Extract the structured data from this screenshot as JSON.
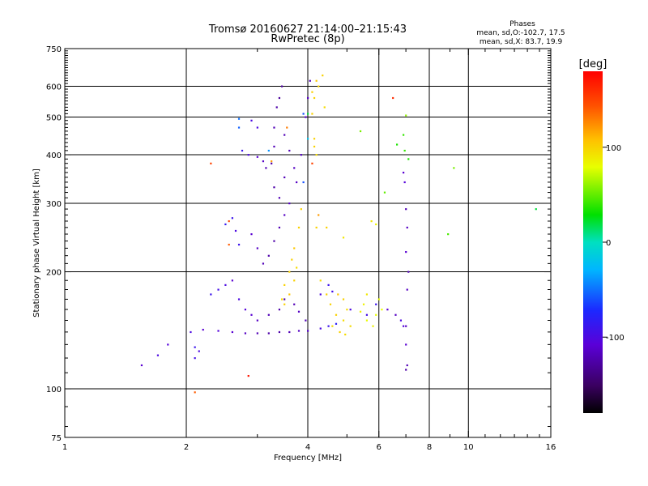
{
  "chart_data": {
    "type": "scatter",
    "title": "Tromsø 20160627 21:14:00–21:15:43",
    "subtitle": "RwPretec (8p)",
    "stats": {
      "heading": "Phases",
      "line1": "mean, sd,O:-102.7, 17.5",
      "line2": "mean, sd,X:  83.7, 19.9"
    },
    "xlabel": "Frequency [MHz]",
    "ylabel": "Stationary phase Virtual Height [km]",
    "x_scale": "log",
    "y_scale": "log",
    "xlim": [
      1,
      16
    ],
    "ylim": [
      75,
      750
    ],
    "xticks": [
      1,
      2,
      4,
      6,
      8,
      10,
      16
    ],
    "xtick_labels": [
      "1",
      "2",
      "4",
      "6",
      "8",
      "10",
      "16"
    ],
    "yticks": [
      75,
      100,
      200,
      300,
      400,
      500,
      600,
      750
    ],
    "ytick_labels": [
      "75",
      "100",
      "200",
      "300",
      "400",
      "500",
      "600",
      "750"
    ],
    "grid": true,
    "grid_x": [
      2,
      4,
      6,
      8,
      10
    ],
    "grid_y": [
      100,
      200,
      300,
      400,
      500,
      600
    ],
    "colorbar": {
      "label": "[deg]",
      "range": [
        -180,
        180
      ],
      "ticks": [
        100,
        0,
        -100
      ],
      "tick_labels": [
        "100",
        "0",
        "-100"
      ],
      "colormap": "rainbow-black-to-red"
    },
    "series": [
      {
        "values": [
          [
            2.05,
            140,
            -100
          ],
          [
            2.2,
            142,
            -110
          ],
          [
            2.4,
            141,
            -105
          ],
          [
            2.6,
            140,
            -110
          ],
          [
            2.8,
            139,
            -115
          ],
          [
            3.0,
            139,
            -120
          ],
          [
            3.2,
            139,
            -125
          ],
          [
            3.4,
            140,
            -125
          ],
          [
            3.6,
            140,
            -120
          ],
          [
            3.8,
            141,
            -115
          ],
          [
            4.0,
            141,
            -110
          ],
          [
            4.3,
            143,
            -100
          ],
          [
            4.5,
            145,
            -90
          ],
          [
            4.7,
            147,
            -80
          ],
          [
            2.1,
            128,
            -90
          ],
          [
            2.15,
            125,
            -100
          ],
          [
            2.1,
            120,
            -95
          ],
          [
            2.3,
            175,
            -90
          ],
          [
            2.4,
            180,
            -95
          ],
          [
            2.5,
            185,
            -100
          ],
          [
            2.6,
            190,
            -110
          ],
          [
            2.7,
            170,
            -100
          ],
          [
            2.8,
            160,
            -105
          ],
          [
            2.9,
            155,
            -110
          ],
          [
            3.0,
            150,
            -115
          ],
          [
            3.2,
            155,
            -120
          ],
          [
            3.4,
            160,
            -125
          ],
          [
            3.5,
            170,
            -125
          ],
          [
            3.7,
            165,
            -120
          ],
          [
            3.8,
            158,
            -115
          ],
          [
            3.95,
            150,
            -120
          ],
          [
            2.5,
            265,
            -85
          ],
          [
            2.6,
            275,
            -90
          ],
          [
            2.65,
            255,
            -100
          ],
          [
            2.7,
            235,
            -90
          ],
          [
            2.9,
            250,
            -110
          ],
          [
            3.0,
            230,
            -115
          ],
          [
            3.1,
            210,
            -120
          ],
          [
            3.2,
            220,
            -125
          ],
          [
            3.3,
            240,
            -125
          ],
          [
            3.4,
            260,
            -120
          ],
          [
            3.5,
            280,
            -115
          ],
          [
            3.6,
            300,
            -115
          ],
          [
            3.3,
            330,
            -125
          ],
          [
            3.4,
            310,
            -120
          ],
          [
            3.5,
            350,
            -120
          ],
          [
            2.75,
            410,
            -90
          ],
          [
            2.85,
            400,
            -100
          ],
          [
            3.0,
            395,
            -110
          ],
          [
            3.1,
            385,
            -115
          ],
          [
            3.15,
            370,
            -120
          ],
          [
            3.25,
            380,
            -125
          ],
          [
            3.3,
            420,
            -120
          ],
          [
            3.3,
            470,
            -120
          ],
          [
            3.35,
            530,
            -125
          ],
          [
            3.4,
            560,
            -130
          ],
          [
            3.45,
            600,
            -130
          ],
          [
            3.5,
            450,
            -120
          ],
          [
            3.6,
            410,
            -120
          ],
          [
            3.7,
            370,
            -115
          ],
          [
            3.75,
            340,
            -115
          ],
          [
            3.85,
            400,
            -115
          ],
          [
            3.95,
            500,
            -110
          ],
          [
            4.05,
            620,
            -120
          ],
          [
            4.0,
            560,
            -115
          ],
          [
            2.9,
            490,
            -100
          ],
          [
            3.0,
            470,
            -100
          ],
          [
            4.5,
            185,
            -90
          ],
          [
            4.3,
            175,
            -100
          ],
          [
            4.6,
            178,
            -95
          ],
          [
            5.1,
            160,
            -100
          ],
          [
            5.6,
            155,
            -95
          ],
          [
            5.9,
            165,
            -90
          ],
          [
            6.3,
            160,
            -110
          ],
          [
            6.6,
            155,
            -115
          ],
          [
            6.8,
            150,
            -100
          ],
          [
            6.9,
            145,
            -105
          ],
          [
            7.0,
            290,
            -120
          ],
          [
            7.05,
            260,
            -115
          ],
          [
            7.0,
            225,
            -110
          ],
          [
            7.1,
            200,
            -120
          ],
          [
            7.05,
            180,
            -115
          ],
          [
            6.9,
            360,
            -110
          ],
          [
            6.95,
            340,
            -105
          ],
          [
            7.0,
            145,
            -115
          ],
          [
            7.0,
            130,
            -110
          ],
          [
            7.05,
            115,
            -120
          ],
          [
            7.0,
            112,
            -125
          ],
          [
            2.7,
            495,
            -50
          ],
          [
            2.7,
            470,
            -55
          ],
          [
            3.9,
            510,
            -60
          ],
          [
            3.2,
            410,
            -40
          ],
          [
            4.0,
            510,
            20
          ],
          [
            4.0,
            440,
            -20
          ],
          [
            3.9,
            340,
            -60
          ],
          [
            1.55,
            115,
            -110
          ],
          [
            1.8,
            130,
            -105
          ],
          [
            1.7,
            122,
            -100
          ]
        ]
      },
      {
        "values": [
          [
            3.5,
            165,
            100
          ],
          [
            3.6,
            175,
            105
          ],
          [
            3.7,
            190,
            100
          ],
          [
            3.75,
            205,
            95
          ],
          [
            3.65,
            215,
            100
          ],
          [
            3.7,
            230,
            105
          ],
          [
            3.8,
            260,
            100
          ],
          [
            3.85,
            290,
            100
          ],
          [
            3.5,
            185,
            100
          ],
          [
            3.45,
            170,
            95
          ],
          [
            3.6,
            200,
            100
          ],
          [
            4.15,
            560,
            100
          ],
          [
            4.2,
            620,
            105
          ],
          [
            4.35,
            640,
            100
          ],
          [
            4.4,
            530,
            95
          ],
          [
            4.1,
            510,
            100
          ],
          [
            4.15,
            420,
            100
          ],
          [
            4.2,
            400,
            95
          ],
          [
            4.15,
            440,
            100
          ],
          [
            4.25,
            600,
            100
          ],
          [
            4.1,
            580,
            100
          ],
          [
            4.6,
            145,
            95
          ],
          [
            4.8,
            140,
            100
          ],
          [
            4.9,
            150,
            95
          ],
          [
            4.7,
            155,
            100
          ],
          [
            5.0,
            160,
            95
          ],
          [
            4.55,
            165,
            100
          ],
          [
            4.75,
            175,
            105
          ],
          [
            4.9,
            170,
            100
          ],
          [
            5.4,
            158,
            85
          ],
          [
            5.6,
            150,
            80
          ],
          [
            5.8,
            145,
            85
          ],
          [
            5.9,
            155,
            80
          ],
          [
            6.0,
            170,
            80
          ],
          [
            5.5,
            165,
            85
          ],
          [
            5.6,
            175,
            90
          ],
          [
            6.1,
            160,
            80
          ],
          [
            5.75,
            270,
            90
          ],
          [
            5.9,
            265,
            85
          ],
          [
            4.9,
            245,
            90
          ],
          [
            4.45,
            260,
            100
          ],
          [
            4.2,
            260,
            100
          ],
          [
            4.45,
            175,
            100
          ],
          [
            4.3,
            190,
            95
          ],
          [
            5.1,
            145,
            95
          ],
          [
            4.95,
            138,
            95
          ]
        ]
      },
      {
        "values": [
          [
            6.65,
            425,
            35
          ],
          [
            6.9,
            450,
            40
          ],
          [
            6.95,
            410,
            40
          ],
          [
            7.1,
            390,
            35
          ],
          [
            6.2,
            320,
            50
          ],
          [
            7.0,
            505,
            60
          ],
          [
            9.2,
            370,
            55
          ],
          [
            8.9,
            250,
            45
          ],
          [
            14.7,
            290,
            20
          ],
          [
            2.1,
            98,
            140
          ],
          [
            2.55,
            270,
            150
          ],
          [
            2.85,
            108,
            170
          ],
          [
            2.3,
            380,
            150
          ],
          [
            2.55,
            235,
            140
          ],
          [
            3.55,
            470,
            130
          ],
          [
            4.1,
            380,
            150
          ],
          [
            3.25,
            385,
            120
          ],
          [
            6.5,
            560,
            160
          ],
          [
            5.4,
            460,
            55
          ],
          [
            4.25,
            280,
            120
          ]
        ]
      }
    ]
  }
}
